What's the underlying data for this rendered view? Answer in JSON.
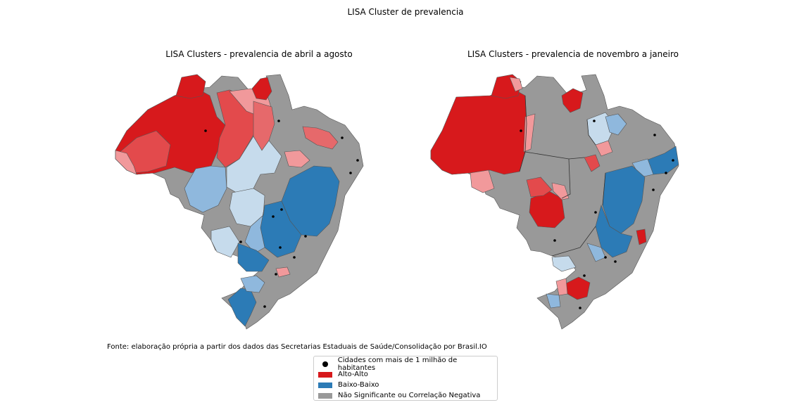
{
  "figure": {
    "suptitle": "LISA Cluster de prevalencia",
    "source_note": "Fonte: elaboração própria a partir dos dados das Secretarias Estaduais de Saúde/Consolidação por Brasil.IO"
  },
  "maps": [
    {
      "title": "LISA Clusters - prevalencia de abril a agosto"
    },
    {
      "title": "LISA Clusters - prevalencia de novembro a janeiro"
    }
  ],
  "legend": {
    "items": [
      {
        "label": "Cidades com mais de 1 milhão de habitantes",
        "marker": "dot",
        "color": "#000000"
      },
      {
        "label": "Alto-Alto",
        "marker": "patch",
        "color": "#d7191c"
      },
      {
        "label": "Baixo-Baixo",
        "marker": "patch",
        "color": "#2c7bb6"
      },
      {
        "label": "Não Significante ou Correlação Negativa",
        "marker": "patch",
        "color": "#999999"
      }
    ]
  },
  "colors": {
    "alto_alto": "#d7191c",
    "alto_alto_medium": "#e34a4c",
    "alto_alto_light": "#f1999b",
    "baixo_baixo": "#2c7bb6",
    "baixo_baixo_medium": "#8fb8dd",
    "baixo_baixo_light": "#c6dbec",
    "nao_significante": "#999999",
    "cidade": "#000000"
  }
}
